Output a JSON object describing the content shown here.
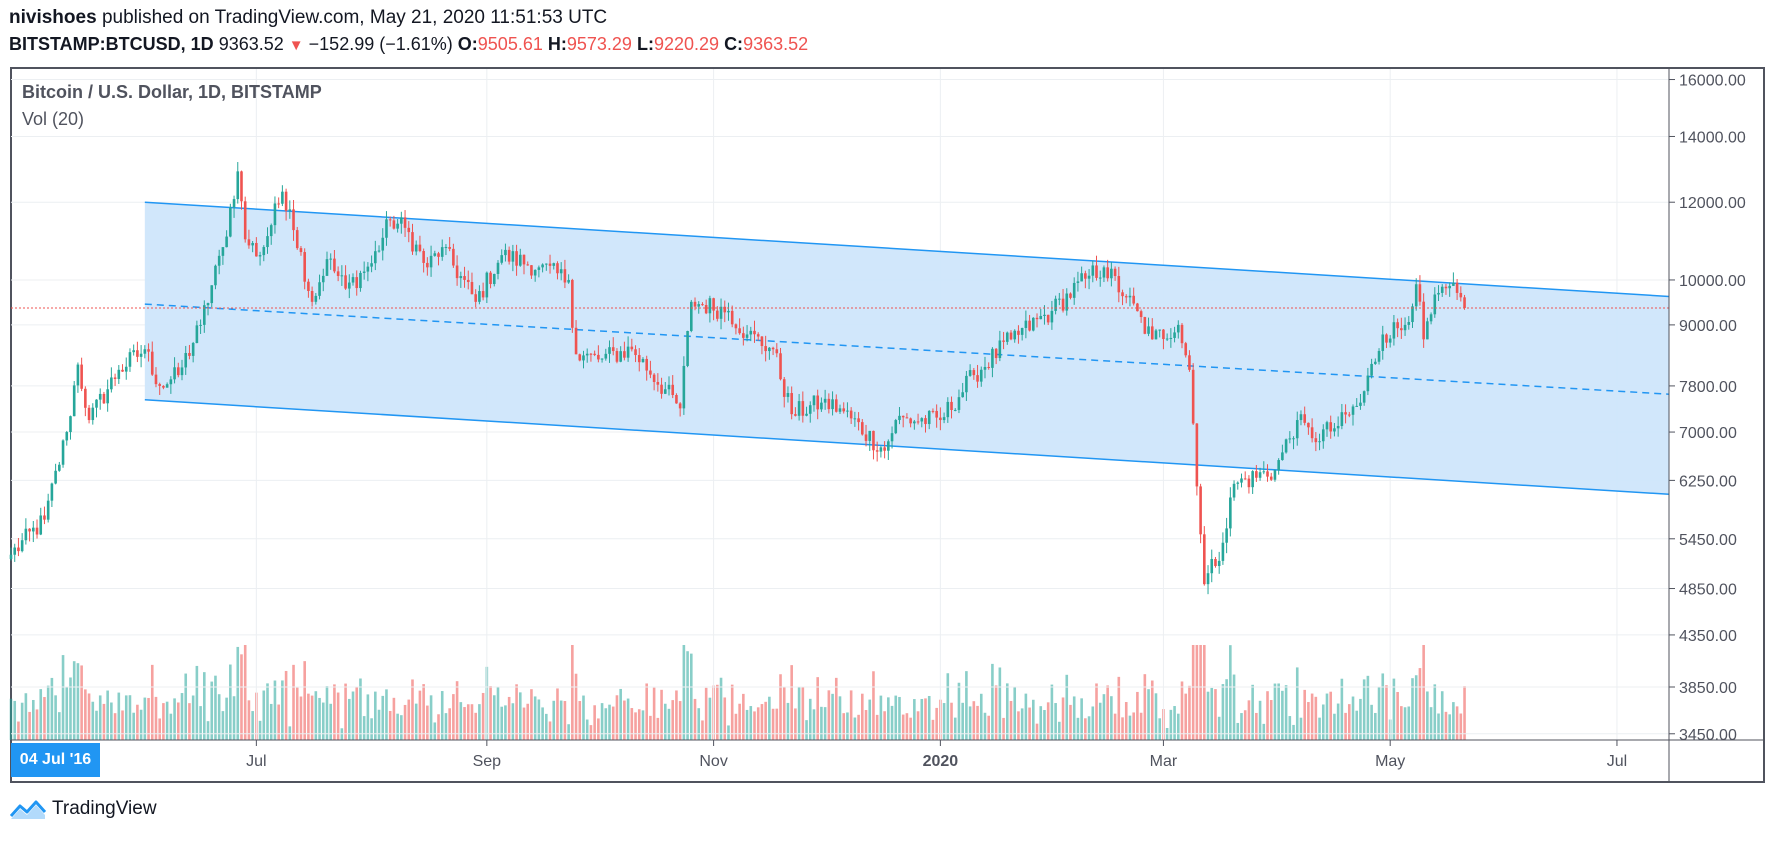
{
  "header": {
    "author": "nivishoes",
    "published_text": "published on TradingView.com, May 21, 2020 11:51:53 UTC",
    "symbol_line": "BITSTAMP:BTCUSD, 1D",
    "last_price": "9363.52",
    "change_text": "−152.99 (−1.61%)",
    "o_label": "O:",
    "o_value": "9505.61",
    "h_label": "H:",
    "h_value": "9573.29",
    "l_label": "L:",
    "l_value": "9220.29",
    "c_label": "C:",
    "c_value": "9363.52"
  },
  "legend": {
    "title": "Bitcoin / U.S. Dollar, 1D, BITSTAMP",
    "volume": "Vol (20)"
  },
  "date_badge": "04 Jul '16",
  "footer": {
    "brand": "TradingView"
  },
  "colors": {
    "up": "#26a69a",
    "down": "#ef5350",
    "channel": "#2196f3",
    "channel_fill": "#cfe6fb",
    "grid": "#eceff2",
    "text": "#131722",
    "axis_text": "#50535e"
  },
  "chart_data": {
    "type": "candlestick",
    "title": "Bitcoin / U.S. Dollar, 1D, BITSTAMP",
    "y_scale": "log",
    "ylim": [
      3400,
      16400
    ],
    "y_ticks": [
      "16000.00",
      "14000.00",
      "12000.00",
      "10000.00",
      "9000.00",
      "7800.00",
      "7000.00",
      "6250.00",
      "5450.00",
      "4850.00",
      "4350.00",
      "3850.00",
      "3450.00"
    ],
    "x_ticks": [
      "Jul",
      "Sep",
      "Nov",
      "2020",
      "Mar",
      "May",
      "Jul"
    ],
    "x_tick_dates": [
      "2019-07-01",
      "2019-09-01",
      "2019-11-01",
      "2020-01-01",
      "2020-03-01",
      "2020-05-01",
      "2020-07-01"
    ],
    "xlim": [
      "2019-04-26",
      "2020-07-15"
    ],
    "grid": true,
    "last_price_line": 9363.52,
    "close_keypoints": [
      [
        "2019-04-26",
        5250
      ],
      [
        "2019-05-05",
        5700
      ],
      [
        "2019-05-11",
        7000
      ],
      [
        "2019-05-14",
        8200
      ],
      [
        "2019-05-17",
        7200
      ],
      [
        "2019-05-25",
        8100
      ],
      [
        "2019-06-01",
        8500
      ],
      [
        "2019-06-05",
        7800
      ],
      [
        "2019-06-10",
        8000
      ],
      [
        "2019-06-16",
        9000
      ],
      [
        "2019-06-22",
        10800
      ],
      [
        "2019-06-26",
        12900
      ],
      [
        "2019-06-28",
        11000
      ],
      [
        "2019-07-02",
        10600
      ],
      [
        "2019-07-08",
        12300
      ],
      [
        "2019-07-10",
        11800
      ],
      [
        "2019-07-16",
        9500
      ],
      [
        "2019-07-20",
        10500
      ],
      [
        "2019-07-25",
        9800
      ],
      [
        "2019-08-01",
        10400
      ],
      [
        "2019-08-06",
        11500
      ],
      [
        "2019-08-10",
        11300
      ],
      [
        "2019-08-16",
        10300
      ],
      [
        "2019-08-20",
        10800
      ],
      [
        "2019-08-29",
        9500
      ],
      [
        "2019-09-05",
        10600
      ],
      [
        "2019-09-15",
        10300
      ],
      [
        "2019-09-23",
        10000
      ],
      [
        "2019-09-25",
        8400
      ],
      [
        "2019-10-01",
        8300
      ],
      [
        "2019-10-10",
        8500
      ],
      [
        "2019-10-23",
        7400
      ],
      [
        "2019-10-26",
        9500
      ],
      [
        "2019-11-05",
        9300
      ],
      [
        "2019-11-10",
        8800
      ],
      [
        "2019-11-17",
        8500
      ],
      [
        "2019-11-22",
        7300
      ],
      [
        "2019-11-30",
        7500
      ],
      [
        "2019-12-05",
        7400
      ],
      [
        "2019-12-17",
        6700
      ],
      [
        "2019-12-20",
        7200
      ],
      [
        "2020-01-01",
        7200
      ],
      [
        "2020-01-10",
        8000
      ],
      [
        "2020-01-20",
        8700
      ],
      [
        "2020-01-31",
        9300
      ],
      [
        "2020-02-10",
        10100
      ],
      [
        "2020-02-14",
        10300
      ],
      [
        "2020-02-20",
        9600
      ],
      [
        "2020-02-27",
        8700
      ],
      [
        "2020-03-05",
        9000
      ],
      [
        "2020-03-08",
        8100
      ],
      [
        "2020-03-12",
        4900
      ],
      [
        "2020-03-17",
        5400
      ],
      [
        "2020-03-20",
        6200
      ],
      [
        "2020-03-31",
        6400
      ],
      [
        "2020-04-06",
        7200
      ],
      [
        "2020-04-10",
        6900
      ],
      [
        "2020-04-17",
        7100
      ],
      [
        "2020-04-23",
        7500
      ],
      [
        "2020-04-29",
        8800
      ],
      [
        "2020-05-05",
        9000
      ],
      [
        "2020-05-08",
        9900
      ],
      [
        "2020-05-10",
        8700
      ],
      [
        "2020-05-14",
        9700
      ],
      [
        "2020-05-19",
        9700
      ],
      [
        "2020-05-21",
        9363.52
      ]
    ],
    "channel": {
      "upper": [
        [
          "2019-06-01",
          12000
        ],
        [
          "2020-07-15",
          9620
        ]
      ],
      "middle": [
        [
          "2019-06-01",
          9450
        ],
        [
          "2020-07-15",
          7650
        ]
      ],
      "lower": [
        [
          "2019-06-01",
          7550
        ],
        [
          "2020-07-15",
          6050
        ]
      ]
    },
    "volume_series": "Vol (20)"
  }
}
